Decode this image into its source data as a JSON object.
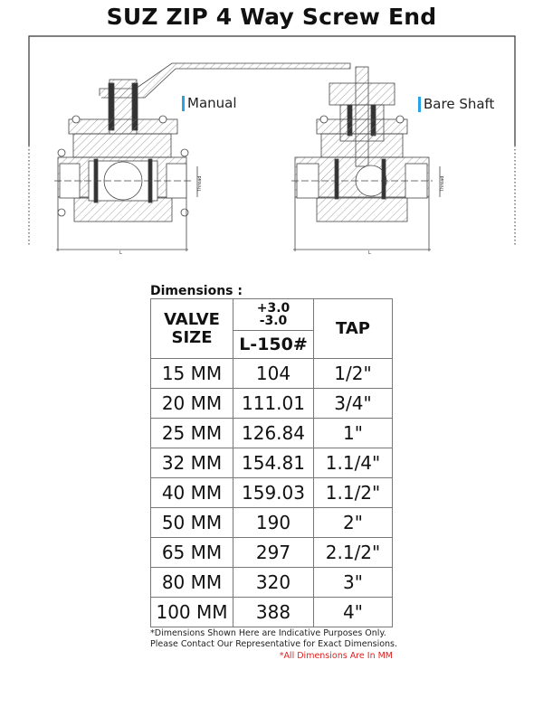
{
  "title": "SUZ ZIP 4 Way Screw  End",
  "drawings": {
    "left_label": "Manual",
    "right_label": "Bare Shaft",
    "thread_label": "Thread",
    "length_label": "L"
  },
  "dimensions": {
    "heading": "Dimensions :",
    "header": {
      "valve_size": "VALVE SIZE",
      "tolerance_plus": "+3.0",
      "tolerance_minus": "-3.0",
      "length": "L-150#",
      "tap": "TAP"
    },
    "rows": [
      {
        "size": "15 MM",
        "length": "104",
        "tap": "1/2\""
      },
      {
        "size": "20 MM",
        "length": "111.01",
        "tap": "3/4\""
      },
      {
        "size": "25 MM",
        "length": "126.84",
        "tap": "1\""
      },
      {
        "size": "32 MM",
        "length": "154.81",
        "tap": "1.1/4\""
      },
      {
        "size": "40 MM",
        "length": "159.03",
        "tap": "1.1/2\""
      },
      {
        "size": "50 MM",
        "length": "190",
        "tap": "2\""
      },
      {
        "size": "65 MM",
        "length": "297",
        "tap": "2.1/2\""
      },
      {
        "size": "80 MM",
        "length": "320",
        "tap": "3\""
      },
      {
        "size": "100 MM",
        "length": "388",
        "tap": "4\""
      }
    ]
  },
  "notes": {
    "line1": "*Dimensions Shown Here are Indicative Purposes Only.",
    "line2": "Please Contact Our Representative for Exact Dimensions.",
    "unit_note": "*All Dimensions Are In MM",
    "unit_note_color": "#e02020"
  }
}
